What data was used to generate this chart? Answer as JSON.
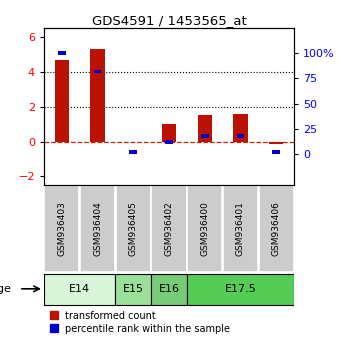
{
  "title": "GDS4591 / 1453565_at",
  "samples": [
    "GSM936403",
    "GSM936404",
    "GSM936405",
    "GSM936402",
    "GSM936400",
    "GSM936401",
    "GSM936406"
  ],
  "transformed_count": [
    4.7,
    5.3,
    -0.05,
    1.0,
    1.55,
    1.6,
    -0.15
  ],
  "percentile_rank": [
    100,
    82,
    2,
    12,
    18,
    18,
    2
  ],
  "age_groups": [
    {
      "label": "E14",
      "start": 0,
      "end": 2,
      "color": "#d9f5d9"
    },
    {
      "label": "E15",
      "start": 2,
      "end": 3,
      "color": "#99e099"
    },
    {
      "label": "E16",
      "start": 3,
      "end": 4,
      "color": "#77cc77"
    },
    {
      "label": "E17.5",
      "start": 4,
      "end": 7,
      "color": "#55cc55"
    }
  ],
  "ylim_left": [
    -2.5,
    6.5
  ],
  "ylim_right": [
    -7.8125,
    31.25
  ],
  "yticks_left": [
    -2,
    0,
    2,
    4,
    6
  ],
  "yticks_right": [
    0,
    6.25,
    12.5,
    18.75,
    25
  ],
  "ytick_labels_right": [
    "0",
    "25",
    "50",
    "75",
    "100%"
  ],
  "bar_color_red": "#bb1100",
  "bar_color_blue": "#0000cc",
  "hline_color": "#cc2200",
  "dotted_line_color": "#000000",
  "bg_color": "#ffffff",
  "sample_box_color": "#cccccc"
}
